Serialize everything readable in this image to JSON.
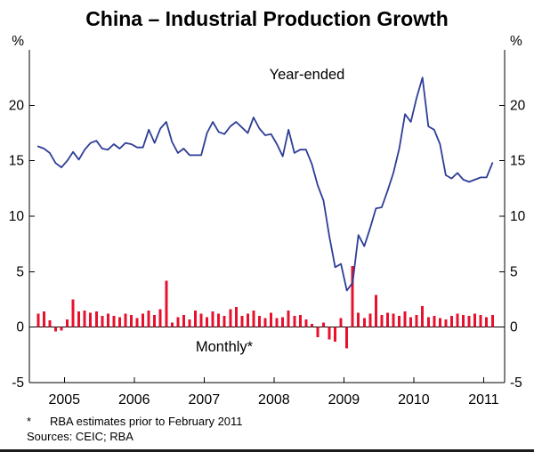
{
  "chart_data": {
    "type": "combo",
    "title": "China – Industrial Production Growth",
    "y_unit_label": "%",
    "ylim": [
      -5,
      25
    ],
    "yticks": [
      -5,
      0,
      5,
      10,
      15,
      20
    ],
    "x_years": [
      2005,
      2006,
      2007,
      2008,
      2009,
      2010,
      2011
    ],
    "x_domain": [
      2004.5,
      2011.3
    ],
    "start": {
      "year": 2004,
      "month": 8
    },
    "frequency": "monthly",
    "series": [
      {
        "name": "Year-ended",
        "type": "line",
        "color": "#2e3d96",
        "values": [
          16.3,
          16.1,
          15.7,
          14.8,
          14.4,
          15.0,
          15.8,
          15.1,
          16.0,
          16.6,
          16.8,
          16.1,
          16.0,
          16.5,
          16.1,
          16.6,
          16.5,
          16.2,
          16.2,
          17.8,
          16.6,
          17.9,
          18.5,
          16.7,
          15.7,
          16.1,
          15.5,
          15.5,
          15.5,
          17.5,
          18.5,
          17.6,
          17.4,
          18.1,
          18.5,
          18.0,
          17.5,
          18.9,
          17.9,
          17.3,
          17.4,
          16.5,
          15.4,
          17.8,
          15.7,
          16.0,
          16.0,
          14.7,
          12.8,
          11.4,
          8.2,
          5.4,
          5.7,
          3.3,
          4.0,
          8.3,
          7.3,
          8.9,
          10.7,
          10.8,
          12.3,
          13.9,
          16.1,
          19.2,
          18.5,
          20.7,
          22.5,
          18.1,
          17.8,
          16.5,
          13.7,
          13.4,
          13.9,
          13.3,
          13.1,
          13.3,
          13.5,
          13.5,
          14.8
        ]
      },
      {
        "name": "Monthly*",
        "type": "bar",
        "color": "#e8112d",
        "values": [
          1.2,
          1.4,
          0.6,
          -0.4,
          -0.3,
          0.7,
          2.5,
          1.4,
          1.5,
          1.3,
          1.4,
          1.0,
          1.2,
          1.0,
          0.9,
          1.2,
          1.1,
          0.8,
          1.2,
          1.5,
          1.1,
          1.6,
          4.2,
          0.4,
          0.9,
          1.1,
          0.7,
          1.5,
          1.2,
          0.9,
          1.4,
          1.2,
          1.0,
          1.6,
          1.8,
          1.0,
          1.2,
          1.5,
          1.0,
          0.8,
          1.3,
          0.8,
          0.9,
          1.5,
          1.0,
          1.1,
          0.7,
          0.3,
          -0.9,
          0.4,
          -1.1,
          -1.3,
          0.8,
          -1.9,
          5.5,
          1.3,
          0.8,
          1.2,
          2.9,
          1.1,
          1.3,
          1.2,
          1.0,
          1.4,
          0.9,
          1.1,
          1.9,
          0.9,
          1.0,
          0.8,
          0.7,
          1.0,
          1.2,
          1.1,
          1.0,
          1.2,
          1.1,
          0.9,
          1.1
        ]
      }
    ]
  },
  "footnotes": {
    "marker": "*",
    "note": "RBA estimates prior to February 2011",
    "sources": "Sources: CEIC; RBA"
  }
}
